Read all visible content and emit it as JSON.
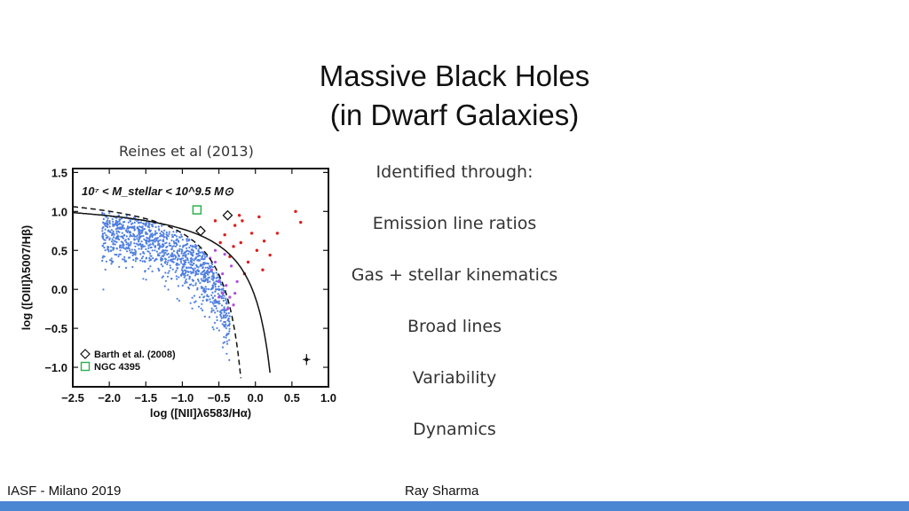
{
  "slide": {
    "title_line1": "Massive Black Holes",
    "title_line2": "(in Dwarf Galaxies)",
    "caption": "Reines et al (2013)",
    "bullets": [
      "Identified through:",
      "Emission line ratios",
      "Gas + stellar kinematics",
      "Broad lines",
      "Variability",
      "Dynamics"
    ],
    "footer_left": "IASF - Milano 2019",
    "footer_right": "Ray Sharma",
    "accent": "#4a86d1"
  },
  "chart_data": {
    "type": "scatter",
    "xlabel": "log ([NII]λ6583/Hα)",
    "ylabel": "log ([OIII]λ5007/Hβ)",
    "xlim": [
      -2.5,
      1.0
    ],
    "ylim": [
      -1.25,
      1.55
    ],
    "xticks": [
      "−2.5",
      "−2.0",
      "−1.5",
      "−1.0",
      "−0.5",
      "0.0",
      "0.5",
      "1.0"
    ],
    "yticks": [
      "1.5",
      "1.0",
      "0.5",
      "0.0",
      "−0.5",
      "−1.0"
    ],
    "panel_label": "10⁷ < M_stellar < 10^9.5 M⊙",
    "legend": [
      "Barth et al. (2008)",
      "NGC 4395"
    ],
    "colors": {
      "star_forming": "#4f7fe0",
      "composite": "#b04fdb",
      "agn": "#e01e1e",
      "ngc4395": "#2bb24c",
      "frame": "#111111"
    },
    "series": [
      {
        "name": "Barth et al. (2008)",
        "points": [
          [
            -0.75,
            0.75
          ],
          [
            -0.38,
            0.95
          ]
        ]
      },
      {
        "name": "NGC 4395",
        "points": [
          [
            -0.8,
            1.02
          ]
        ]
      }
    ],
    "agn_points": [
      [
        -0.18,
        0.88
      ],
      [
        -0.05,
        0.72
      ],
      [
        0.05,
        0.93
      ],
      [
        -0.3,
        0.55
      ],
      [
        -0.42,
        0.7
      ],
      [
        -0.2,
        0.6
      ],
      [
        0.12,
        0.62
      ],
      [
        0.2,
        0.44
      ],
      [
        0.55,
        1.0
      ],
      [
        0.62,
        0.86
      ],
      [
        -0.55,
        0.88
      ],
      [
        -0.1,
        0.35
      ],
      [
        0.02,
        0.5
      ],
      [
        -0.28,
        0.82
      ],
      [
        0.3,
        0.72
      ],
      [
        -0.15,
        0.2
      ],
      [
        -0.35,
        0.42
      ],
      [
        0.1,
        0.25
      ],
      [
        -0.48,
        0.6
      ],
      [
        -0.22,
        0.95
      ]
    ],
    "composite_points": [
      [
        -0.55,
        0.35
      ],
      [
        -0.45,
        0.2
      ],
      [
        -0.4,
        0.05
      ],
      [
        -0.35,
        -0.1
      ],
      [
        -0.3,
        -0.2
      ],
      [
        -0.5,
        0.1
      ],
      [
        -0.6,
        0.25
      ],
      [
        -0.25,
        0.1
      ],
      [
        -0.45,
        -0.05
      ],
      [
        -0.33,
        0.3
      ],
      [
        -0.55,
        0.5
      ],
      [
        -0.38,
        -0.25
      ],
      [
        -0.28,
        -0.05
      ],
      [
        -0.5,
        -0.1
      ],
      [
        -0.42,
        0.45
      ],
      [
        -0.62,
        0.4
      ]
    ],
    "errorbar": {
      "x": 0.7,
      "y": -0.9,
      "xerr": 0.05,
      "yerr": 0.07
    }
  }
}
